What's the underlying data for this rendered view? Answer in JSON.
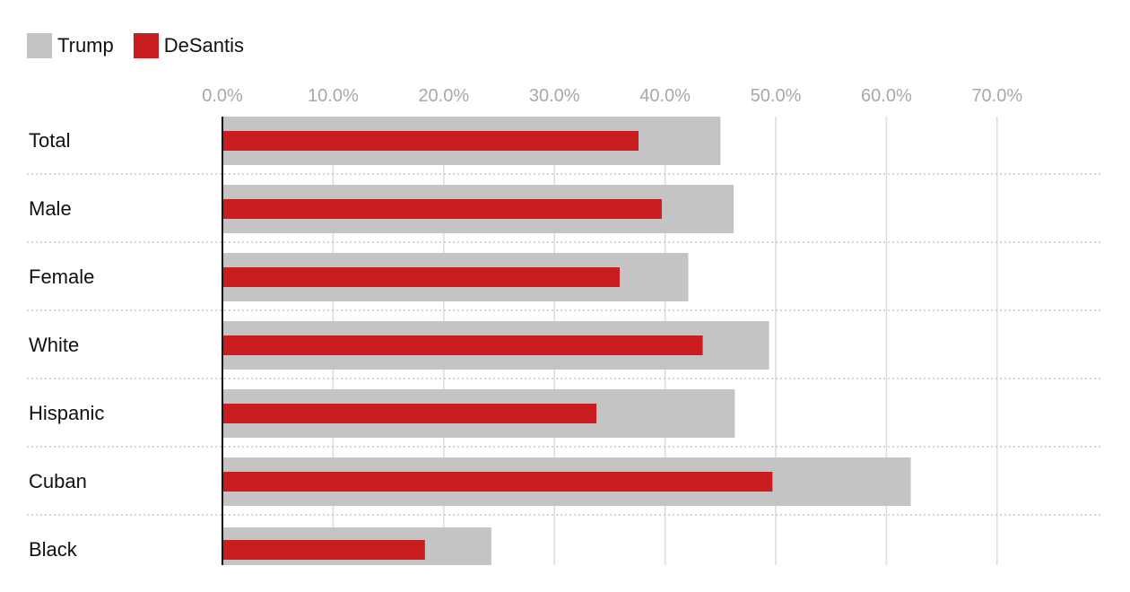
{
  "legend": [
    {
      "name": "Trump",
      "color": "#c4c4c4"
    },
    {
      "name": "DeSantis",
      "color": "#c91d1f"
    }
  ],
  "chart_data": {
    "type": "bar",
    "orientation": "horizontal",
    "categories": [
      "Total",
      "Male",
      "Female",
      "White",
      "Hispanic",
      "Cuban",
      "Black"
    ],
    "series": [
      {
        "name": "Trump",
        "color": "#c4c4c4",
        "values": [
          45.0,
          46.2,
          42.1,
          49.4,
          46.3,
          62.2,
          24.3
        ]
      },
      {
        "name": "DeSantis",
        "color": "#c91d1f",
        "values": [
          37.6,
          39.7,
          35.9,
          43.4,
          33.8,
          49.7,
          18.3
        ]
      }
    ],
    "x_ticks": [
      "0.0%",
      "10.0%",
      "20.0%",
      "30.0%",
      "40.0%",
      "50.0%",
      "60.0%",
      "70.0%"
    ],
    "xlim": [
      0,
      70
    ],
    "grid": true,
    "legend_position": "top-left",
    "title": "",
    "xlabel": "",
    "ylabel": ""
  }
}
